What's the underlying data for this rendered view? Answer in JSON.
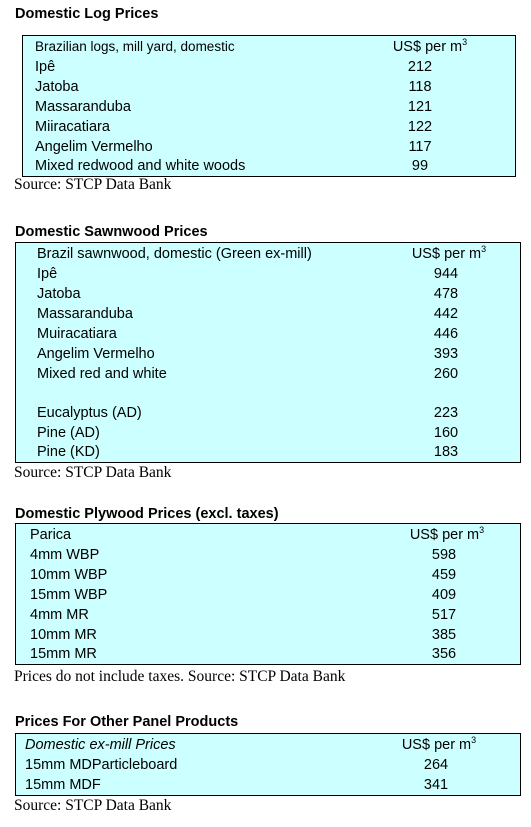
{
  "sections": [
    {
      "title": "Domestic Log Prices",
      "header": [
        "Brazilian logs, mill yard, domestic",
        "US$ per m",
        "3"
      ],
      "rows": [
        [
          "Ipê",
          "212"
        ],
        [
          "Jatoba",
          "118"
        ],
        [
          "Massaranduba",
          "121"
        ],
        [
          "Miiracatiara",
          "122"
        ],
        [
          "Angelim Vermelho",
          "117"
        ],
        [
          "Mixed redwood and white woods",
          "99"
        ]
      ],
      "source": "Source: STCP Data Bank"
    },
    {
      "title": "Domestic Sawnwood Prices",
      "header": [
        "Brazil sawnwood, domestic (Green ex-mill)",
        "US$ per m",
        "3"
      ],
      "rows": [
        [
          "Ipê",
          "944"
        ],
        [
          "Jatoba",
          "478"
        ],
        [
          "Massaranduba",
          "442"
        ],
        [
          "Muiracatiara",
          "446"
        ],
        [
          "Angelim Vermelho",
          "393"
        ],
        [
          "Mixed red and white",
          "260"
        ],
        [
          "Eucalyptus (AD)",
          "223"
        ],
        [
          "Pine (AD)",
          "160"
        ],
        [
          "Pine (KD)",
          "183"
        ]
      ],
      "source": "Source: STCP Data Bank"
    },
    {
      "title": "Domestic Plywood Prices (excl. taxes)",
      "header": [
        "Parica",
        "US$ per m",
        "3"
      ],
      "rows": [
        [
          "4mm WBP",
          "598"
        ],
        [
          "10mm WBP",
          "459"
        ],
        [
          "15mm WBP",
          "409"
        ],
        [
          "4mm MR",
          "517"
        ],
        [
          "10mm MR",
          "385"
        ],
        [
          "15mm MR",
          "356"
        ]
      ],
      "source": "Prices do not include taxes. Source: STCP Data Bank"
    },
    {
      "title": "Prices For Other Panel Products",
      "header": [
        "Domestic ex-mill Prices",
        "US$ per m",
        "3"
      ],
      "rows": [
        [
          "15mm MDParticleboard",
          "264"
        ],
        [
          "15mm MDF",
          "341"
        ]
      ],
      "source": "Source: STCP Data Bank"
    }
  ]
}
